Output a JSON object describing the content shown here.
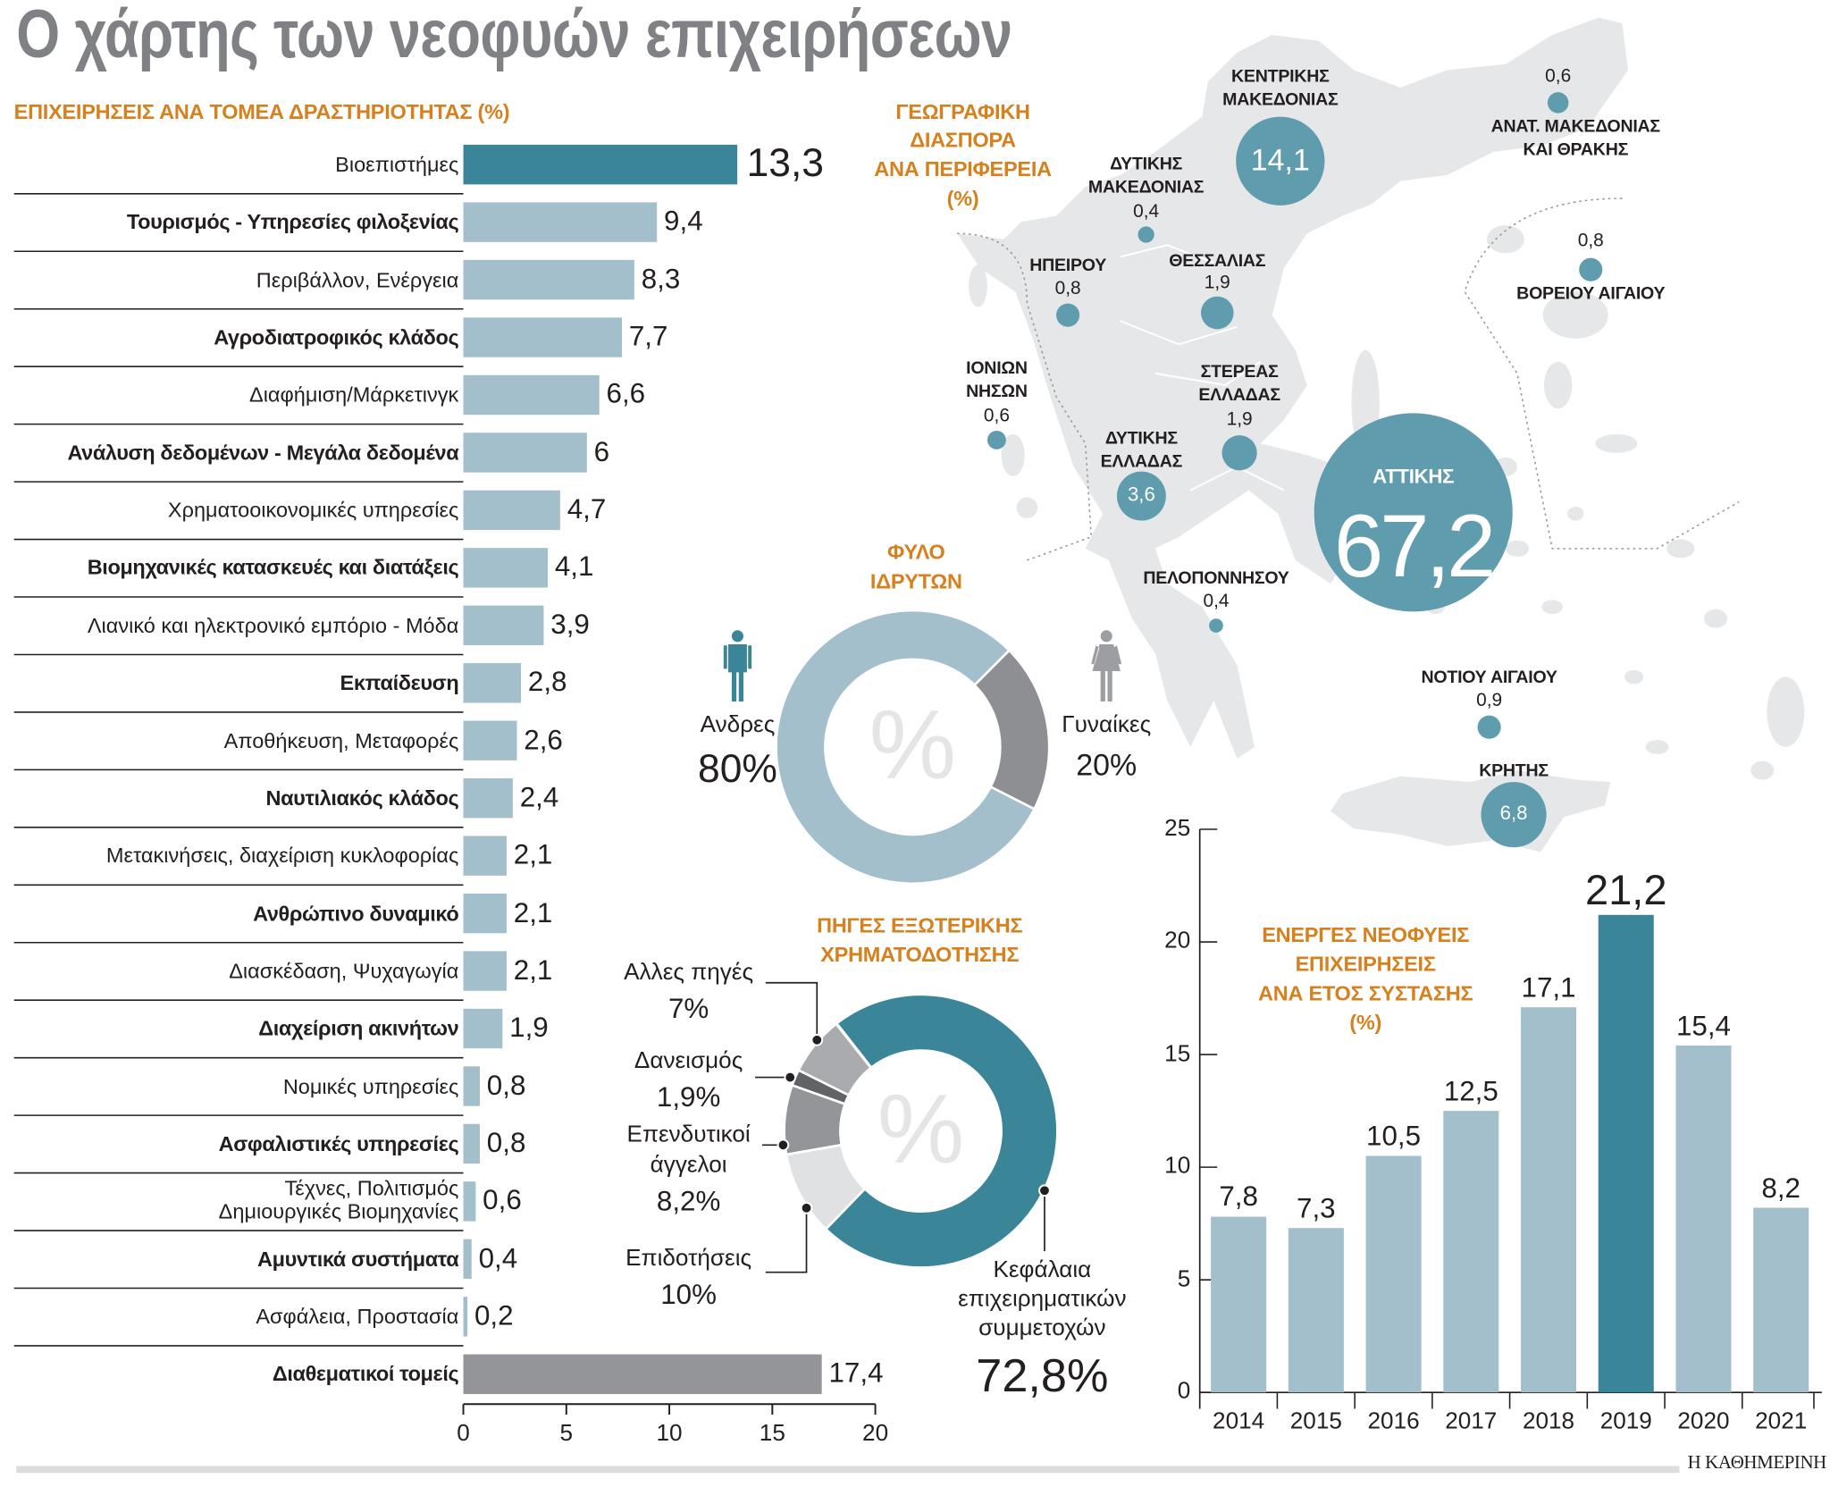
{
  "title": "Ο χάρτης των νεοφυών επιχειρήσεων",
  "colors": {
    "teal": "#3b8599",
    "light_blue": "#a3bfcb",
    "gray": "#939598",
    "orange": "#d6801e",
    "map_circle": "#5f9cad",
    "land": "#e6e7e8"
  },
  "sectors_chart": {
    "type": "bar",
    "orientation": "horizontal",
    "title": "ΕΠΙΧΕΙΡΗΣΕΙΣ ΑΝΑ ΤΟΜΕΑ ΔΡΑΣΤΗΡΙΟΤΗΤΑΣ (%)",
    "xlim": [
      0,
      20
    ],
    "ticks": [
      "0",
      "5",
      "10",
      "15",
      "20"
    ],
    "items": [
      {
        "label": "Βιοεπιστήμες",
        "value": 13.3,
        "display": "13,3",
        "highlight": true
      },
      {
        "label": "Τουρισμός - Υπηρεσίες φιλοξενίας",
        "value": 9.4,
        "display": "9,4"
      },
      {
        "label": "Περιβάλλον, Ενέργεια",
        "value": 8.3,
        "display": "8,3"
      },
      {
        "label": "Αγροδιατροφικός κλάδος",
        "value": 7.7,
        "display": "7,7"
      },
      {
        "label": "Διαφήμιση/Μάρκετινγκ",
        "value": 6.6,
        "display": "6,6"
      },
      {
        "label": "Ανάλυση δεδομένων - Μεγάλα δεδομένα",
        "value": 6,
        "display": "6"
      },
      {
        "label": "Χρηματοοικονομικές υπηρεσίες",
        "value": 4.7,
        "display": "4,7"
      },
      {
        "label": "Βιομηχανικές κατασκευές και διατάξεις",
        "value": 4.1,
        "display": "4,1"
      },
      {
        "label": "Λιανικό και ηλεκτρονικό εμπόριο - Μόδα",
        "value": 3.9,
        "display": "3,9"
      },
      {
        "label": "Εκπαίδευση",
        "value": 2.8,
        "display": "2,8"
      },
      {
        "label": "Αποθήκευση, Μεταφορές",
        "value": 2.6,
        "display": "2,6"
      },
      {
        "label": "Ναυτιλιακός κλάδος",
        "value": 2.4,
        "display": "2,4"
      },
      {
        "label": "Μετακινήσεις, διαχείριση κυκλοφορίας",
        "value": 2.1,
        "display": "2,1"
      },
      {
        "label": "Ανθρώπινο δυναμικό",
        "value": 2.1,
        "display": "2,1"
      },
      {
        "label": "Διασκέδαση, Ψυχαγωγία",
        "value": 2.1,
        "display": "2,1"
      },
      {
        "label": "Διαχείριση ακινήτων",
        "value": 1.9,
        "display": "1,9"
      },
      {
        "label": "Νομικές υπηρεσίες",
        "value": 0.8,
        "display": "0,8"
      },
      {
        "label": "Ασφαλιστικές υπηρεσίες",
        "value": 0.8,
        "display": "0,8"
      },
      {
        "label": "Τέχνες, Πολιτισμός\nΔημιουργικές Βιομηχανίες",
        "value": 0.6,
        "display": "0,6"
      },
      {
        "label": "Αμυντικά συστήματα",
        "value": 0.4,
        "display": "0,4"
      },
      {
        "label": "Ασφάλεια, Προστασία",
        "value": 0.2,
        "display": "0,2"
      },
      {
        "label": "Διαθεματικοί τομείς",
        "value": 17.4,
        "display": "17,4",
        "cross": true
      }
    ]
  },
  "map": {
    "title": [
      "ΓΕΩΓΡΑΦΙΚΗ",
      "ΔΙΑΣΠΟΡΑ",
      "ΑΝΑ ΠΕΡΙΦΕΡΕΙΑ",
      "(%)"
    ],
    "regions": [
      {
        "name": [
          "ΚΕΝΤΡΙΚΗΣ",
          "ΜΑΚΕΔΟΝΙΑΣ"
        ],
        "value": 14.1,
        "display": "14,1"
      },
      {
        "name": [
          "ΑΝΑΤ. ΜΑΚΕΔΟΝΙΑΣ",
          "ΚΑΙ ΘΡΑΚΗΣ"
        ],
        "value": 0.6,
        "display": "0,6"
      },
      {
        "name": [
          "ΔΥΤΙΚΗΣ",
          "ΜΑΚΕΔΟΝΙΑΣ"
        ],
        "value": 0.4,
        "display": "0,4"
      },
      {
        "name": [
          "ΗΠΕΙΡΟΥ"
        ],
        "value": 0.8,
        "display": "0,8"
      },
      {
        "name": [
          "ΘΕΣΣΑΛΙΑΣ"
        ],
        "value": 1.9,
        "display": "1,9"
      },
      {
        "name": [
          "ΒΟΡΕΙΟΥ ΑΙΓΑΙΟΥ"
        ],
        "value": 0.8,
        "display": "0,8"
      },
      {
        "name": [
          "ΙΟΝΙΩΝ",
          "ΝΗΣΩΝ"
        ],
        "value": 0.6,
        "display": "0,6"
      },
      {
        "name": [
          "ΣΤΕΡΕΑΣ",
          "ΕΛΛΑΔΑΣ"
        ],
        "value": 1.9,
        "display": "1,9"
      },
      {
        "name": [
          "ΔΥΤΙΚΗΣ",
          "ΕΛΛΑΔΑΣ"
        ],
        "value": 3.6,
        "display": "3,6"
      },
      {
        "name": [
          "ΑΤΤΙΚΗΣ"
        ],
        "value": 67.2,
        "display": "67,2"
      },
      {
        "name": [
          "ΠΕΛΟΠΟΝΝΗΣΟΥ"
        ],
        "value": 0.4,
        "display": "0,4"
      },
      {
        "name": [
          "ΝΟΤΙΟΥ ΑΙΓΑΙΟΥ"
        ],
        "value": 0.9,
        "display": "0,9"
      },
      {
        "name": [
          "ΚΡΗΤΗΣ"
        ],
        "value": 6.8,
        "display": "6,8"
      }
    ]
  },
  "gender_chart": {
    "type": "pie",
    "title": [
      "ΦΥΛΟ",
      "ΙΔΡΥΤΩΝ"
    ],
    "center_symbol": "%",
    "slices": [
      {
        "label": "Ανδρες",
        "value": 80,
        "display": "80%",
        "color": "#a3bfcb",
        "icon": "man-icon"
      },
      {
        "label": "Γυναίκες",
        "value": 20,
        "display": "20%",
        "color": "#8e8f92",
        "icon": "woman-icon"
      }
    ]
  },
  "funding_chart": {
    "type": "pie",
    "title": [
      "ΠΗΓΕΣ ΕΞΩΤΕΡΙΚΗΣ",
      "ΧΡΗΜΑΤΟΔΟΤΗΣΗΣ"
    ],
    "center_symbol": "%",
    "slices": [
      {
        "label": [
          "Κεφάλαια",
          "επιχειρηματικών",
          "συμμετοχών"
        ],
        "value": 72.8,
        "display": "72,8%",
        "color": "#3b8599"
      },
      {
        "label": [
          "Επιδοτήσεις"
        ],
        "value": 10,
        "display": "10%",
        "color": "#e0e1e3"
      },
      {
        "label": [
          "Επενδυτικοί",
          "άγγελοι"
        ],
        "value": 8.2,
        "display": "8,2%",
        "color": "#939598"
      },
      {
        "label": [
          "Δανεισμός"
        ],
        "value": 1.9,
        "display": "1,9%",
        "color": "#616366"
      },
      {
        "label": [
          "Αλλες πηγές"
        ],
        "value": 7,
        "display": "7%",
        "color": "#a9abae"
      }
    ]
  },
  "years_chart": {
    "type": "bar",
    "title": [
      "ΕΝΕΡΓΕΣ ΝΕΟΦΥΕΙΣ",
      "ΕΠΙΧΕΙΡΗΣΕΙΣ",
      "ΑΝΑ ΕΤΟΣ ΣΥΣΤΑΣΗΣ",
      "(%)"
    ],
    "ylim": [
      0,
      25
    ],
    "yticks": [
      "0",
      "5",
      "10",
      "15",
      "20",
      "25"
    ],
    "categories": [
      "2014",
      "2015",
      "2016",
      "2017",
      "2018",
      "2019",
      "2020",
      "2021"
    ],
    "values": [
      7.8,
      7.3,
      10.5,
      12.5,
      17.1,
      21.2,
      15.4,
      8.2
    ],
    "labels": [
      "7,8",
      "7,3",
      "10,5",
      "12,5",
      "17,1",
      "21,2",
      "15,4",
      "8,2"
    ],
    "highlight": "2019"
  },
  "footer": {
    "logo": "Η ΚΑΘΗΜΕΡΙΝΗ"
  }
}
